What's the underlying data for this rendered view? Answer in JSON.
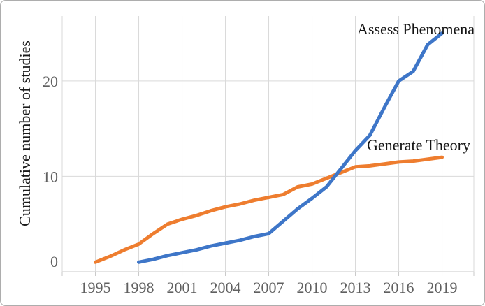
{
  "figure": {
    "background": "#ffffff",
    "border_color": "#adadad"
  },
  "axis": {
    "tick_label_color": "#606060",
    "grid_color": "#d9d9d9",
    "tick_mark_color": "#c8c8c8",
    "axis_line_color": "#c9c9c9"
  },
  "chart_data": {
    "type": "line",
    "title": "",
    "xlabel": "",
    "ylabel": "Cumulative number of studies",
    "grid": true,
    "legend_position": "inline-annotations-at-line-end",
    "x_ticks": [
      1995,
      1998,
      2001,
      2004,
      2007,
      2010,
      2013,
      2016,
      2019
    ],
    "y_ticks": [
      0,
      10,
      20
    ],
    "xlim": [
      1992.7,
      2021.2
    ],
    "ylim": [
      0,
      26.8
    ],
    "series": [
      {
        "name": "Assess Phenomena",
        "color": "#3e76c8",
        "x": [
          1998,
          1999,
          2000,
          2001,
          2002,
          2003,
          2004,
          2005,
          2006,
          2007,
          2008,
          2009,
          2010,
          2011,
          2012,
          2013,
          2014,
          2015,
          2016,
          2017,
          2018,
          2019
        ],
        "values": [
          1.0,
          1.3,
          1.7,
          2.0,
          2.3,
          2.7,
          3.0,
          3.3,
          3.7,
          4.0,
          5.3,
          6.6,
          7.7,
          8.9,
          10.8,
          12.7,
          14.3,
          17.2,
          20.0,
          21.0,
          23.8,
          25.0
        ]
      },
      {
        "name": "Generate Theory",
        "color": "#ee7d2f",
        "x": [
          1995,
          1996,
          1997,
          1998,
          1999,
          2000,
          2001,
          2002,
          2003,
          2004,
          2005,
          2006,
          2007,
          2008,
          2009,
          2010,
          2011,
          2012,
          2013,
          2014,
          2015,
          2016,
          2017,
          2018,
          2019
        ],
        "values": [
          1.0,
          1.6,
          2.3,
          2.9,
          4.0,
          5.0,
          5.5,
          5.9,
          6.4,
          6.8,
          7.1,
          7.5,
          7.8,
          8.1,
          8.9,
          9.2,
          9.8,
          10.4,
          11.0,
          11.1,
          11.3,
          11.5,
          11.6,
          11.8,
          12.0
        ]
      }
    ]
  }
}
